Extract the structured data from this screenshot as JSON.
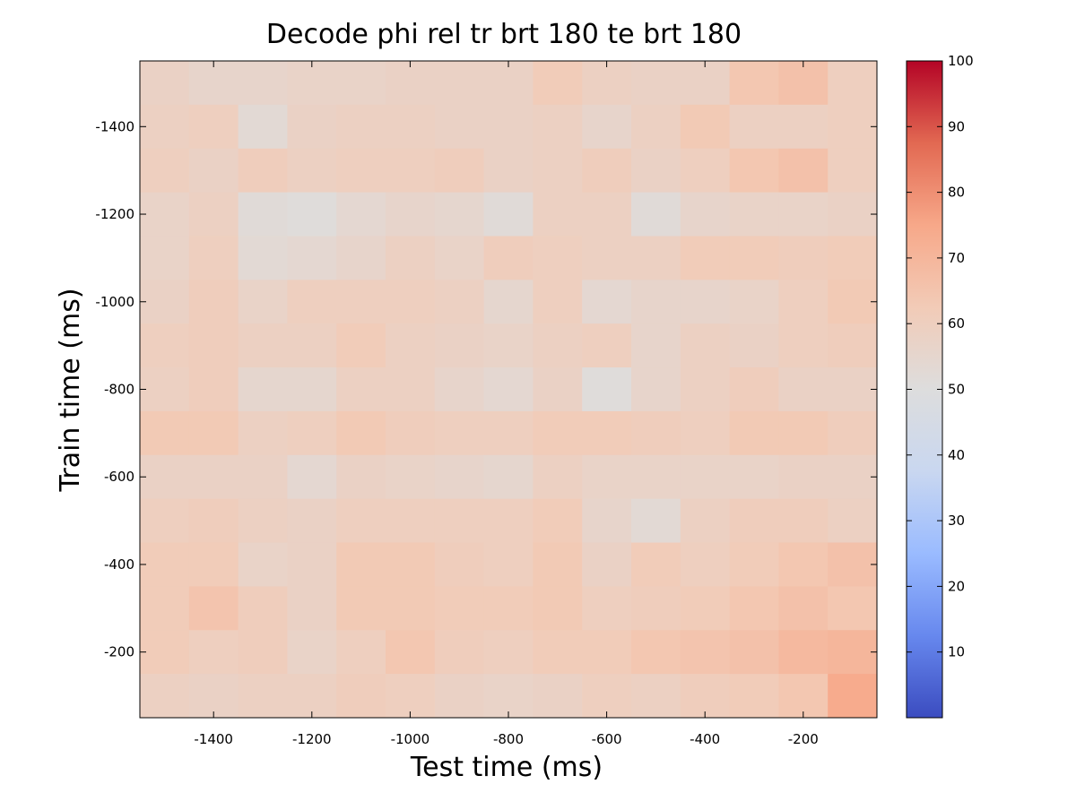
{
  "chart_data": {
    "type": "heatmap",
    "title": "Decode phi rel tr brt 180 te brt 180",
    "xlabel": "Test time (ms)",
    "ylabel": "Train time (ms)",
    "x_centers": [
      -1500,
      -1400,
      -1300,
      -1200,
      -1100,
      -1000,
      -900,
      -800,
      -700,
      -600,
      -500,
      -400,
      -300,
      -200,
      -100
    ],
    "y_centers": [
      -1500,
      -1400,
      -1300,
      -1200,
      -1100,
      -1000,
      -900,
      -800,
      -700,
      -600,
      -500,
      -400,
      -300,
      -200,
      -100
    ],
    "xlim": [
      -1550,
      -50
    ],
    "ylim": [
      -1550,
      -50
    ],
    "y_reversed": true,
    "x_ticks": [
      -1400,
      -1200,
      -1000,
      -800,
      -600,
      -400,
      -200
    ],
    "y_ticks": [
      -1400,
      -1200,
      -1000,
      -800,
      -600,
      -400,
      -200
    ],
    "colorbar": {
      "range": [
        0,
        100
      ],
      "ticks": [
        10,
        20,
        30,
        40,
        50,
        60,
        70,
        80,
        90,
        100
      ],
      "colormap": "coolwarm",
      "stops": [
        "#3b4cc0",
        "#6788ee",
        "#9abbff",
        "#c9d7f0",
        "#dddddd",
        "#f2cbb7",
        "#f7a889",
        "#e26952",
        "#b40426"
      ]
    },
    "values": [
      [
        58,
        56,
        56,
        57,
        57,
        58,
        58,
        58,
        62,
        59,
        58,
        58,
        64,
        66,
        60
      ],
      [
        59,
        60,
        53,
        58,
        59,
        59,
        58,
        58,
        59,
        56,
        59,
        63,
        59,
        59,
        60
      ],
      [
        60,
        58,
        61,
        59,
        60,
        60,
        61,
        58,
        59,
        61,
        58,
        60,
        64,
        66,
        60
      ],
      [
        57,
        59,
        52,
        51,
        54,
        56,
        55,
        52,
        59,
        59,
        52,
        56,
        57,
        57,
        58
      ],
      [
        57,
        60,
        53,
        54,
        56,
        59,
        57,
        61,
        60,
        59,
        59,
        62,
        62,
        61,
        62
      ],
      [
        58,
        61,
        57,
        60,
        60,
        60,
        59,
        55,
        60,
        54,
        56,
        56,
        57,
        60,
        63
      ],
      [
        60,
        61,
        59,
        59,
        62,
        59,
        58,
        57,
        59,
        60,
        56,
        59,
        58,
        60,
        61
      ],
      [
        59,
        61,
        55,
        55,
        59,
        59,
        56,
        54,
        58,
        51,
        56,
        59,
        61,
        58,
        58
      ],
      [
        63,
        63,
        59,
        60,
        63,
        61,
        60,
        60,
        62,
        62,
        61,
        60,
        63,
        63,
        61
      ],
      [
        58,
        58,
        58,
        54,
        58,
        57,
        56,
        55,
        59,
        57,
        57,
        57,
        57,
        58,
        58
      ],
      [
        60,
        61,
        59,
        58,
        60,
        60,
        60,
        60,
        62,
        56,
        53,
        59,
        61,
        61,
        59
      ],
      [
        62,
        62,
        57,
        58,
        63,
        63,
        61,
        60,
        63,
        58,
        62,
        60,
        62,
        64,
        66
      ],
      [
        62,
        65,
        61,
        58,
        63,
        63,
        62,
        62,
        63,
        60,
        61,
        62,
        64,
        66,
        64
      ],
      [
        62,
        60,
        61,
        57,
        60,
        64,
        61,
        60,
        62,
        62,
        64,
        65,
        66,
        69,
        70
      ],
      [
        59,
        58,
        59,
        59,
        61,
        60,
        58,
        57,
        58,
        60,
        59,
        61,
        62,
        64,
        74
      ]
    ]
  }
}
